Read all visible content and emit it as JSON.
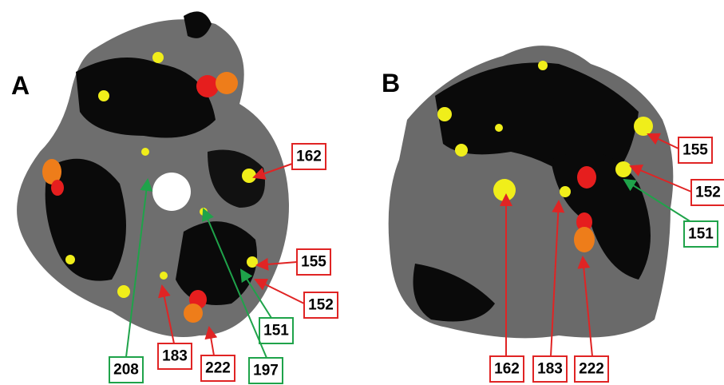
{
  "panels": [
    {
      "label": "A",
      "annotations": [
        {
          "text": "162",
          "color": "#e02424"
        },
        {
          "text": "155",
          "color": "#e02424"
        },
        {
          "text": "152",
          "color": "#e02424"
        },
        {
          "text": "151",
          "color": "#1fa34a"
        },
        {
          "text": "197",
          "color": "#1fa34a"
        },
        {
          "text": "222",
          "color": "#e02424"
        },
        {
          "text": "183",
          "color": "#e02424"
        },
        {
          "text": "208",
          "color": "#1fa34a"
        }
      ]
    },
    {
      "label": "B",
      "annotations": [
        {
          "text": "155",
          "color": "#e02424"
        },
        {
          "text": "152",
          "color": "#e02424"
        },
        {
          "text": "151",
          "color": "#1fa34a"
        },
        {
          "text": "162",
          "color": "#e02424"
        },
        {
          "text": "183",
          "color": "#e02424"
        },
        {
          "text": "222",
          "color": "#e02424"
        }
      ]
    }
  ]
}
